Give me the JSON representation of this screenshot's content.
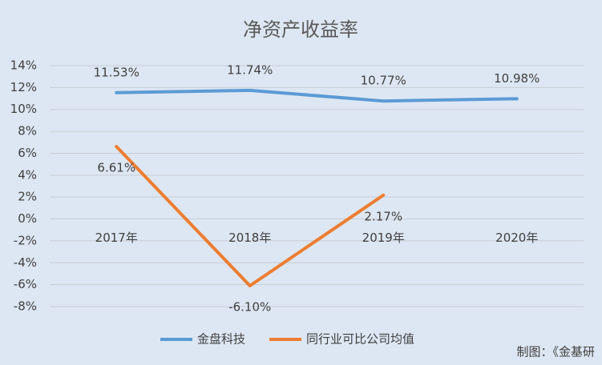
{
  "chart_data": {
    "type": "line",
    "title": "净资产收益率",
    "categories": [
      "2017年",
      "2018年",
      "2019年",
      "2020年"
    ],
    "series": [
      {
        "name": "金盘科技",
        "color": "#5b9bd5",
        "values": [
          11.53,
          11.74,
          10.77,
          10.98
        ],
        "value_labels": [
          "11.53%",
          "11.74%",
          "10.77%",
          "10.98%"
        ]
      },
      {
        "name": "同行业可比公司均值",
        "color": "#ed7d31",
        "values": [
          6.61,
          -6.1,
          2.17,
          null
        ],
        "value_labels": [
          "6.61%",
          "-6.10%",
          "2.17%",
          null
        ]
      }
    ],
    "ylim": [
      -8,
      14
    ],
    "yticks": [
      {
        "value": -8,
        "label": "-8%"
      },
      {
        "value": -6,
        "label": "-6%"
      },
      {
        "value": -4,
        "label": "-4%"
      },
      {
        "value": -2,
        "label": "-2%"
      },
      {
        "value": 0,
        "label": "0%"
      },
      {
        "value": 2,
        "label": "2%"
      },
      {
        "value": 4,
        "label": "4%"
      },
      {
        "value": 6,
        "label": "6%"
      },
      {
        "value": 8,
        "label": "8%"
      },
      {
        "value": 10,
        "label": "10%"
      },
      {
        "value": 12,
        "label": "12%"
      },
      {
        "value": 14,
        "label": "14%"
      }
    ],
    "grid": true,
    "legend": "bottom",
    "credit": "制图：《金基研"
  }
}
